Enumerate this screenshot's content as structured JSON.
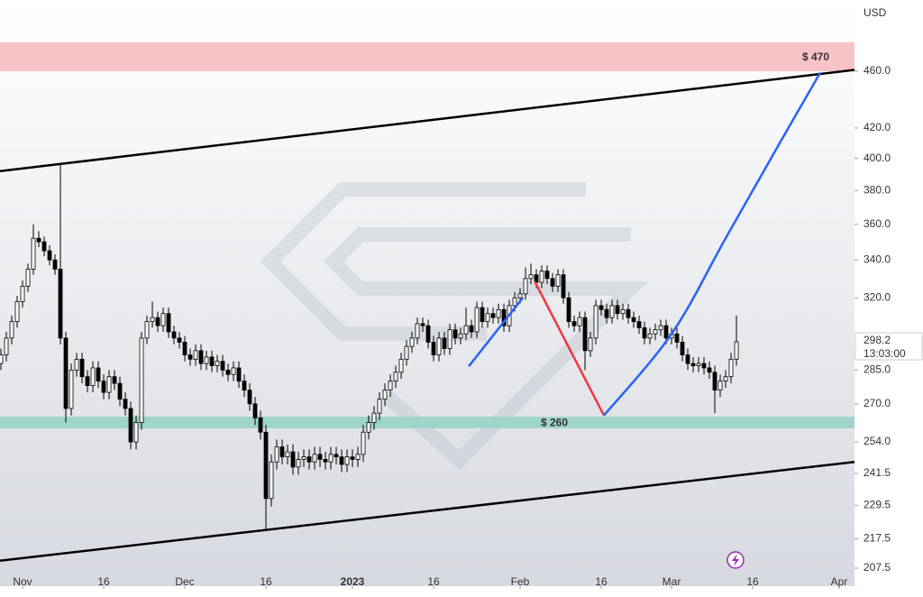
{
  "chart_data": {
    "type": "candlestick",
    "currency": "USD",
    "log_scale": true,
    "xlim": [
      -4.17,
      153.83
    ],
    "ylim": [
      201.6,
      515.6
    ],
    "xticks": [
      {
        "value": 0,
        "label": "Nov"
      },
      {
        "value": 15,
        "label": "16"
      },
      {
        "value": 30,
        "label": "Dec"
      },
      {
        "value": 45,
        "label": "16"
      },
      {
        "value": 61,
        "label": "2023"
      },
      {
        "value": 76,
        "label": "16"
      },
      {
        "value": 92,
        "label": "Feb"
      },
      {
        "value": 107,
        "label": "16"
      },
      {
        "value": 120,
        "label": "Mar"
      },
      {
        "value": 135,
        "label": "16"
      },
      {
        "value": 151,
        "label": "Apr"
      }
    ],
    "yticks": [
      {
        "value": 460,
        "label": "460.0"
      },
      {
        "value": 420,
        "label": "420.0"
      },
      {
        "value": 400,
        "label": "400.0"
      },
      {
        "value": 380,
        "label": "380.0"
      },
      {
        "value": 360,
        "label": "360.0"
      },
      {
        "value": 340,
        "label": "340.0"
      },
      {
        "value": 320,
        "label": "320.0"
      },
      {
        "value": 285,
        "label": "285.0"
      },
      {
        "value": 270,
        "label": "270.0"
      },
      {
        "value": 254,
        "label": "254.0"
      },
      {
        "value": 241.5,
        "label": "241.5"
      },
      {
        "value": 229.5,
        "label": "229.5"
      },
      {
        "value": 217.5,
        "label": "217.5"
      },
      {
        "value": 207.5,
        "label": "207.5"
      }
    ],
    "up_color": "#ffffff",
    "down_color": "#000000",
    "countdown": "13:03:00",
    "x": [
      -4,
      -3,
      -2,
      -1,
      0,
      1,
      2,
      3,
      4,
      5,
      6,
      7,
      8,
      9,
      10,
      11,
      12,
      13,
      14,
      15,
      16,
      17,
      18,
      19,
      20,
      21,
      22,
      23,
      24,
      25,
      26,
      27,
      28,
      29,
      30,
      31,
      32,
      33,
      34,
      35,
      36,
      37,
      38,
      39,
      40,
      41,
      42,
      43,
      44,
      45,
      46,
      47,
      48,
      49,
      50,
      51,
      52,
      53,
      54,
      55,
      56,
      57,
      58,
      59,
      60,
      61,
      62,
      63,
      64,
      65,
      66,
      67,
      68,
      69,
      70,
      71,
      72,
      73,
      74,
      75,
      76,
      77,
      78,
      79,
      80,
      81,
      82,
      83,
      84,
      85,
      86,
      87,
      88,
      89,
      90,
      91,
      92,
      93,
      94,
      95,
      96,
      97,
      98,
      99,
      100,
      101,
      102,
      103,
      104,
      105,
      106,
      107,
      108,
      109,
      110,
      111,
      112,
      113,
      114,
      115,
      116,
      117,
      118,
      119,
      120,
      121,
      122,
      123,
      124,
      125,
      126,
      127,
      128,
      129,
      130,
      131,
      132
    ],
    "open": [
      288,
      292,
      300,
      308,
      318,
      326,
      335,
      352,
      350,
      345,
      340,
      335,
      300,
      268,
      285,
      290,
      282,
      278,
      286,
      280,
      275,
      282,
      279,
      272,
      268,
      254,
      262,
      300,
      308,
      310,
      306,
      312,
      303,
      300,
      298,
      292,
      290,
      294,
      288,
      291,
      287,
      289,
      285,
      283,
      286,
      280,
      276,
      270,
      264,
      258,
      232,
      246,
      252,
      248,
      250,
      244,
      247,
      248,
      246,
      249,
      247,
      246,
      249,
      248,
      245,
      248,
      247,
      249,
      258,
      262,
      266,
      272,
      276,
      280,
      284,
      290,
      296,
      300,
      307,
      306,
      298,
      292,
      300,
      295,
      304,
      300,
      302,
      306,
      303,
      315,
      308,
      312,
      310,
      314,
      306,
      316,
      320,
      322,
      330,
      332,
      328,
      334,
      330,
      326,
      332,
      320,
      308,
      306,
      310,
      294,
      300,
      316,
      314,
      310,
      316,
      312,
      314,
      310,
      308,
      305,
      300,
      302,
      304,
      306,
      300,
      302,
      298,
      292,
      288,
      287,
      288,
      286,
      284,
      276,
      280,
      282,
      290
    ],
    "high": [
      295,
      303,
      311,
      321,
      329,
      338,
      360,
      356,
      353,
      348,
      343,
      397,
      303,
      288,
      293,
      293,
      285,
      289,
      289,
      283,
      285,
      285,
      282,
      275,
      271,
      265,
      303,
      311,
      318,
      313,
      315,
      315,
      306,
      303,
      301,
      295,
      297,
      297,
      294,
      294,
      292,
      292,
      288,
      289,
      289,
      283,
      279,
      273,
      267,
      261,
      249,
      255,
      255,
      253,
      253,
      250,
      251,
      251,
      252,
      252,
      250,
      252,
      252,
      251,
      251,
      251,
      252,
      261,
      265,
      269,
      275,
      279,
      283,
      287,
      293,
      299,
      303,
      310,
      310,
      309,
      301,
      303,
      303,
      307,
      307,
      305,
      315,
      309,
      318,
      318,
      315,
      315,
      317,
      317,
      319,
      323,
      325,
      336,
      338,
      335,
      337,
      337,
      333,
      335,
      335,
      323,
      311,
      313,
      313,
      303,
      319,
      319,
      317,
      319,
      319,
      317,
      317,
      313,
      311,
      308,
      305,
      307,
      309,
      309,
      305,
      305,
      301,
      295,
      291,
      291,
      291,
      289,
      287,
      283,
      285,
      293,
      311
    ],
    "low": [
      285,
      289,
      297,
      305,
      315,
      323,
      332,
      347,
      342,
      337,
      332,
      297,
      262,
      265,
      282,
      279,
      275,
      275,
      277,
      272,
      272,
      276,
      269,
      265,
      251,
      251,
      259,
      297,
      305,
      303,
      303,
      300,
      297,
      295,
      289,
      287,
      287,
      285,
      285,
      284,
      284,
      282,
      280,
      280,
      277,
      273,
      267,
      261,
      255,
      221,
      229,
      243,
      245,
      245,
      241,
      241,
      244,
      243,
      243,
      244,
      243,
      243,
      245,
      242,
      242,
      244,
      244,
      246,
      255,
      259,
      263,
      269,
      273,
      277,
      281,
      287,
      293,
      297,
      303,
      295,
      289,
      289,
      292,
      292,
      297,
      297,
      299,
      300,
      300,
      305,
      305,
      307,
      307,
      303,
      303,
      313,
      317,
      319,
      327,
      325,
      325,
      327,
      323,
      323,
      317,
      305,
      303,
      303,
      285,
      291,
      297,
      311,
      307,
      307,
      309,
      309,
      307,
      305,
      302,
      297,
      297,
      299,
      301,
      297,
      297,
      295,
      289,
      285,
      284,
      284,
      283,
      281,
      266,
      273,
      277,
      279,
      287
    ],
    "close": [
      292,
      300,
      308,
      318,
      326,
      335,
      352,
      350,
      345,
      340,
      335,
      300,
      268,
      285,
      290,
      282,
      278,
      286,
      280,
      275,
      282,
      279,
      272,
      268,
      254,
      262,
      300,
      308,
      310,
      306,
      312,
      303,
      300,
      298,
      292,
      290,
      294,
      288,
      291,
      287,
      289,
      285,
      283,
      286,
      280,
      276,
      270,
      264,
      258,
      232,
      246,
      252,
      248,
      250,
      244,
      247,
      248,
      246,
      249,
      247,
      246,
      249,
      248,
      245,
      248,
      247,
      249,
      258,
      262,
      266,
      272,
      276,
      280,
      284,
      290,
      296,
      300,
      307,
      306,
      298,
      292,
      300,
      295,
      304,
      300,
      302,
      306,
      303,
      315,
      308,
      312,
      310,
      314,
      306,
      316,
      320,
      322,
      330,
      332,
      328,
      334,
      330,
      326,
      332,
      320,
      308,
      306,
      310,
      294,
      300,
      316,
      314,
      310,
      316,
      312,
      314,
      310,
      308,
      305,
      300,
      302,
      304,
      306,
      300,
      302,
      298,
      292,
      288,
      287,
      288,
      286,
      284,
      276,
      280,
      282,
      290,
      298.2
    ],
    "zones": [
      {
        "label": "$ 470",
        "range": [
          460,
          481.8
        ],
        "color": "#f8c3c7"
      },
      {
        "label": "$ 260",
        "range": [
          259.6,
          264.5
        ],
        "color": "#9fd4c8"
      }
    ],
    "lines": [
      {
        "color": "#000000",
        "x": [
          -4.17,
          153.83
        ],
        "y": [
          392,
          461
        ]
      },
      {
        "color": "#000000",
        "x": [
          -4.17,
          153.83
        ],
        "y": [
          210,
          246
        ]
      },
      {
        "color": "#2962ff",
        "x": [
          82.5,
          92.5
        ],
        "y": [
          286.7,
          320
        ]
      },
      {
        "color": "#f23645",
        "x": [
          94.7,
          107.5
        ],
        "y": [
          328.5,
          265
        ]
      },
      {
        "color": "#2962ff",
        "x": [
          107.5,
          120,
          130,
          140,
          147.5
        ],
        "y": [
          265,
          302,
          352,
          410,
          459
        ]
      }
    ]
  }
}
